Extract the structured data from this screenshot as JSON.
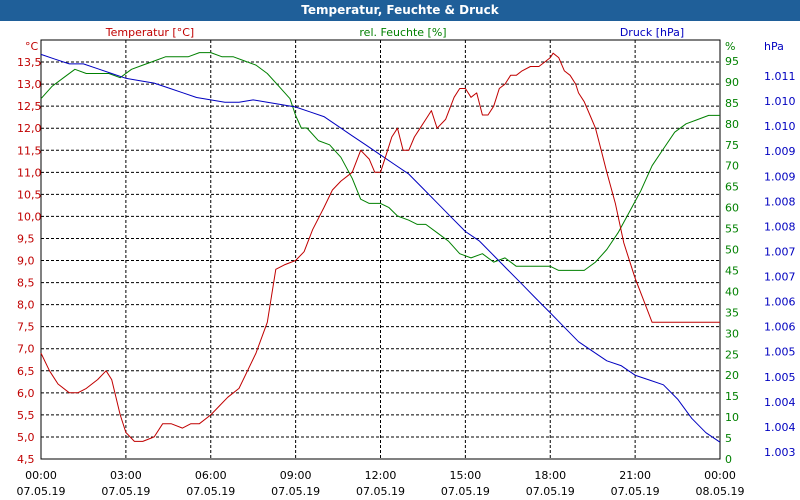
{
  "window": {
    "title": "Temperatur, Feuchte & Druck"
  },
  "colors": {
    "temperature": "#c00000",
    "humidity": "#008000",
    "pressure": "#0000c0",
    "titlebar": "#1f5f99"
  },
  "chart_data": {
    "type": "line",
    "title": "Temperatur, Feuchte & Druck",
    "x_time_labels": [
      "00:00",
      "03:00",
      "06:00",
      "09:00",
      "12:00",
      "15:00",
      "18:00",
      "21:00",
      "00:00"
    ],
    "x_date_labels": [
      "07.05.19",
      "07.05.19",
      "07.05.19",
      "07.05.19",
      "07.05.19",
      "07.05.19",
      "07.05.19",
      "07.05.19",
      "08.05.19"
    ],
    "xlim": [
      0,
      24
    ],
    "axes": {
      "temperature": {
        "label": "Temperatur [°C]",
        "unit": "°C",
        "lim": [
          4.5,
          14.0
        ],
        "ticks": [
          "13,5",
          "13,0",
          "12,5",
          "12,0",
          "11,5",
          "11,0",
          "10,5",
          "10,0",
          "9,5",
          "9,0",
          "8,5",
          "8,0",
          "7,5",
          "7,0",
          "6,5",
          "6,0",
          "5,5",
          "5,0",
          "4,5"
        ]
      },
      "humidity": {
        "label": "rel. Feuchte [%]",
        "unit": "%",
        "lim": [
          0,
          100
        ],
        "ticks": [
          "95",
          "90",
          "85",
          "80",
          "75",
          "70",
          "65",
          "60",
          "55",
          "50",
          "45",
          "40",
          "35",
          "30",
          "25",
          "20",
          "15",
          "10",
          "5",
          "0"
        ]
      },
      "pressure": {
        "label": "Druck [hPa]",
        "unit": "hPa",
        "lim": [
          1002.85,
          1011.6
        ],
        "ticks": [
          "1.011",
          "1.010",
          "1.010",
          "1.009",
          "1.009",
          "1.008",
          "1.008",
          "1.007",
          "1.007",
          "1.006",
          "1.006",
          "1.005",
          "1.005",
          "1.004",
          "1.004",
          "1.003"
        ]
      }
    },
    "series": [
      {
        "name": "Temperatur",
        "axis": "temperature",
        "x": [
          0,
          0.3,
          0.6,
          1.0,
          1.3,
          1.6,
          2.0,
          2.3,
          2.5,
          2.8,
          3.0,
          3.3,
          3.6,
          4.0,
          4.3,
          4.6,
          5.0,
          5.3,
          5.6,
          6.0,
          6.3,
          6.6,
          7.0,
          7.3,
          7.6,
          8.0,
          8.3,
          8.6,
          9.0,
          9.3,
          9.6,
          10.0,
          10.3,
          10.6,
          11.0,
          11.3,
          11.6,
          11.8,
          12.0,
          12.2,
          12.4,
          12.6,
          12.8,
          13.0,
          13.2,
          13.4,
          13.6,
          13.8,
          14.0,
          14.3,
          14.6,
          14.8,
          15.0,
          15.2,
          15.4,
          15.6,
          15.8,
          16.0,
          16.2,
          16.4,
          16.6,
          16.8,
          17.0,
          17.3,
          17.6,
          17.8,
          18.0,
          18.1,
          18.3,
          18.5,
          18.7,
          18.9,
          19.0,
          19.2,
          19.4,
          19.6,
          19.8,
          20.0,
          20.3,
          20.6,
          21.0,
          21.3,
          21.6,
          22.0,
          22.3,
          22.6,
          23.0,
          23.3,
          23.6,
          24.0
        ],
        "values": [
          6.9,
          6.5,
          6.2,
          6.0,
          6.0,
          6.1,
          6.3,
          6.5,
          6.3,
          5.5,
          5.1,
          4.9,
          4.9,
          5.0,
          5.3,
          5.3,
          5.2,
          5.3,
          5.3,
          5.5,
          5.7,
          5.9,
          6.1,
          6.5,
          6.9,
          7.6,
          8.8,
          8.9,
          9.0,
          9.2,
          9.7,
          10.2,
          10.6,
          10.8,
          11.0,
          11.5,
          11.3,
          11.0,
          11.0,
          11.4,
          11.8,
          12.0,
          11.5,
          11.5,
          11.8,
          12.0,
          12.2,
          12.4,
          12.0,
          12.2,
          12.7,
          12.9,
          12.9,
          12.7,
          12.8,
          12.3,
          12.3,
          12.5,
          12.9,
          13.0,
          13.2,
          13.2,
          13.3,
          13.4,
          13.4,
          13.5,
          13.6,
          13.7,
          13.6,
          13.3,
          13.2,
          13.0,
          12.8,
          12.6,
          12.3,
          12.0,
          11.5,
          11.0,
          10.3,
          9.4,
          8.6,
          8.1,
          7.6,
          7.6,
          7.6,
          7.6,
          7.6,
          7.6,
          7.6,
          7.6
        ]
      },
      {
        "name": "rel. Feuchte",
        "axis": "humidity",
        "x": [
          0,
          0.4,
          0.8,
          1.2,
          1.6,
          2.0,
          2.4,
          2.8,
          3.2,
          3.6,
          4.0,
          4.4,
          4.8,
          5.2,
          5.6,
          6.0,
          6.4,
          6.8,
          7.2,
          7.6,
          8.0,
          8.4,
          8.8,
          9.0,
          9.2,
          9.4,
          9.8,
          10.2,
          10.6,
          11.0,
          11.3,
          11.6,
          12.0,
          12.3,
          12.6,
          13.0,
          13.3,
          13.6,
          14.0,
          14.4,
          14.8,
          15.2,
          15.6,
          16.0,
          16.4,
          16.8,
          17.2,
          17.6,
          18.0,
          18.3,
          18.6,
          18.9,
          19.2,
          19.6,
          20.0,
          20.4,
          20.8,
          21.2,
          21.6,
          22.0,
          22.4,
          22.8,
          23.2,
          23.6,
          24.0
        ],
        "values": [
          86,
          89,
          91,
          93,
          92,
          92,
          92,
          91,
          93,
          94,
          95,
          96,
          96,
          96,
          97,
          97,
          96,
          96,
          95,
          94,
          92,
          89,
          86,
          82,
          79,
          79,
          76,
          75,
          72,
          67,
          62,
          61,
          61,
          60,
          58,
          57,
          56,
          56,
          54,
          52,
          49,
          48,
          49,
          47,
          48,
          46,
          46,
          46,
          46,
          45,
          45,
          45,
          45,
          47,
          50,
          54,
          59,
          64,
          70,
          74,
          78,
          80,
          81,
          82,
          82
        ]
      },
      {
        "name": "Druck",
        "axis": "pressure",
        "x": [
          0,
          0.5,
          1.0,
          1.5,
          2.0,
          2.5,
          3.0,
          3.5,
          4.0,
          4.5,
          5.0,
          5.5,
          6.0,
          6.5,
          7.0,
          7.5,
          8.0,
          8.5,
          9.0,
          9.5,
          10.0,
          10.5,
          11.0,
          11.5,
          12.0,
          12.5,
          13.0,
          13.5,
          14.0,
          14.5,
          15.0,
          15.5,
          16.0,
          16.5,
          17.0,
          17.5,
          18.0,
          18.5,
          19.0,
          19.5,
          20.0,
          20.5,
          21.0,
          21.5,
          22.0,
          22.5,
          23.0,
          23.5,
          24.0
        ],
        "values": [
          1011.3,
          1011.2,
          1011.1,
          1011.1,
          1011.0,
          1010.9,
          1010.8,
          1010.75,
          1010.7,
          1010.6,
          1010.5,
          1010.4,
          1010.35,
          1010.3,
          1010.3,
          1010.35,
          1010.3,
          1010.25,
          1010.2,
          1010.1,
          1010.0,
          1009.8,
          1009.6,
          1009.4,
          1009.2,
          1009.0,
          1008.8,
          1008.5,
          1008.2,
          1007.9,
          1007.6,
          1007.4,
          1007.1,
          1006.8,
          1006.5,
          1006.2,
          1005.9,
          1005.6,
          1005.3,
          1005.1,
          1004.9,
          1004.8,
          1004.6,
          1004.5,
          1004.4,
          1004.1,
          1003.7,
          1003.4,
          1003.2
        ]
      }
    ]
  }
}
